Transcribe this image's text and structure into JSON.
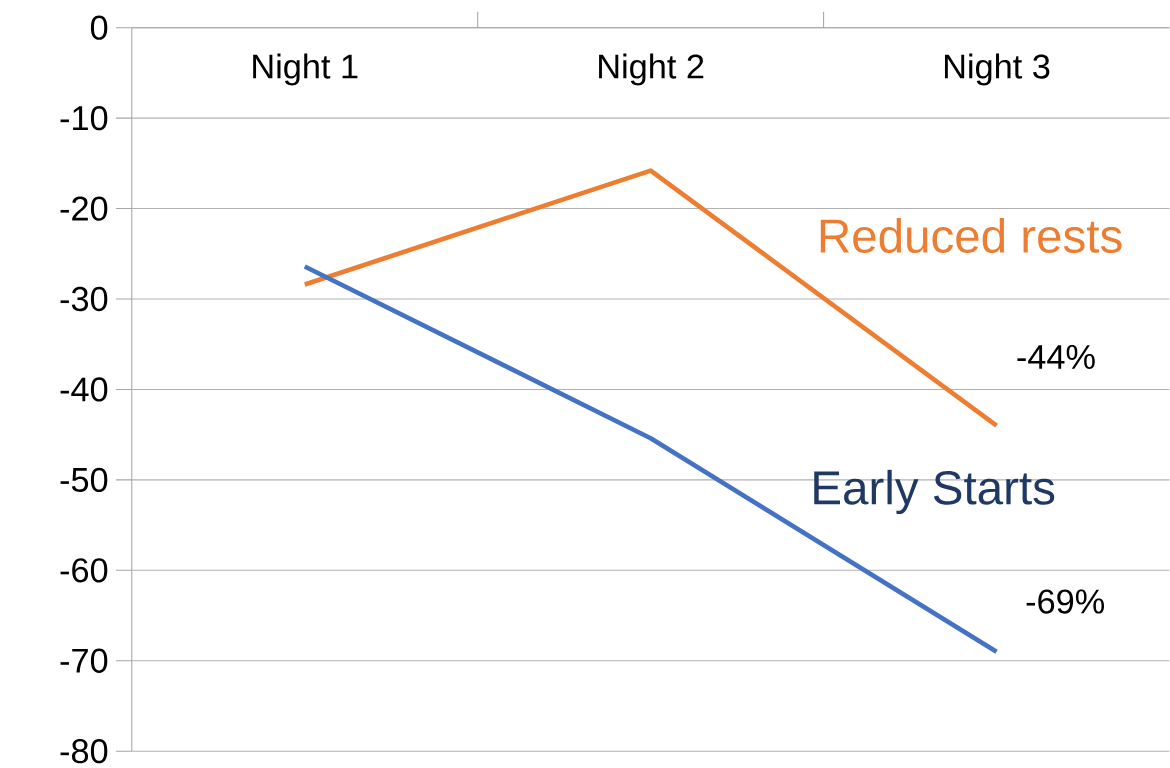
{
  "chart_data": {
    "type": "line",
    "categories": [
      "Night 1",
      "Night 2",
      "Night 3"
    ],
    "series": [
      {
        "name": "Reduced rests",
        "color": "#ed7d31",
        "values": [
          -28.4,
          -15.8,
          -44
        ],
        "value_labels": [
          null,
          null,
          "-44%"
        ]
      },
      {
        "name": "Early Starts",
        "color": "#4472c4",
        "values": [
          -26.4,
          -45.4,
          -69
        ],
        "value_labels": [
          null,
          null,
          "-69%"
        ]
      }
    ],
    "ylim": [
      -80,
      0
    ],
    "yticks": [
      0,
      -10,
      -20,
      -30,
      -40,
      -50,
      -60,
      -70,
      -80
    ],
    "grid": "y",
    "marker": "none",
    "line_style": "solid"
  }
}
